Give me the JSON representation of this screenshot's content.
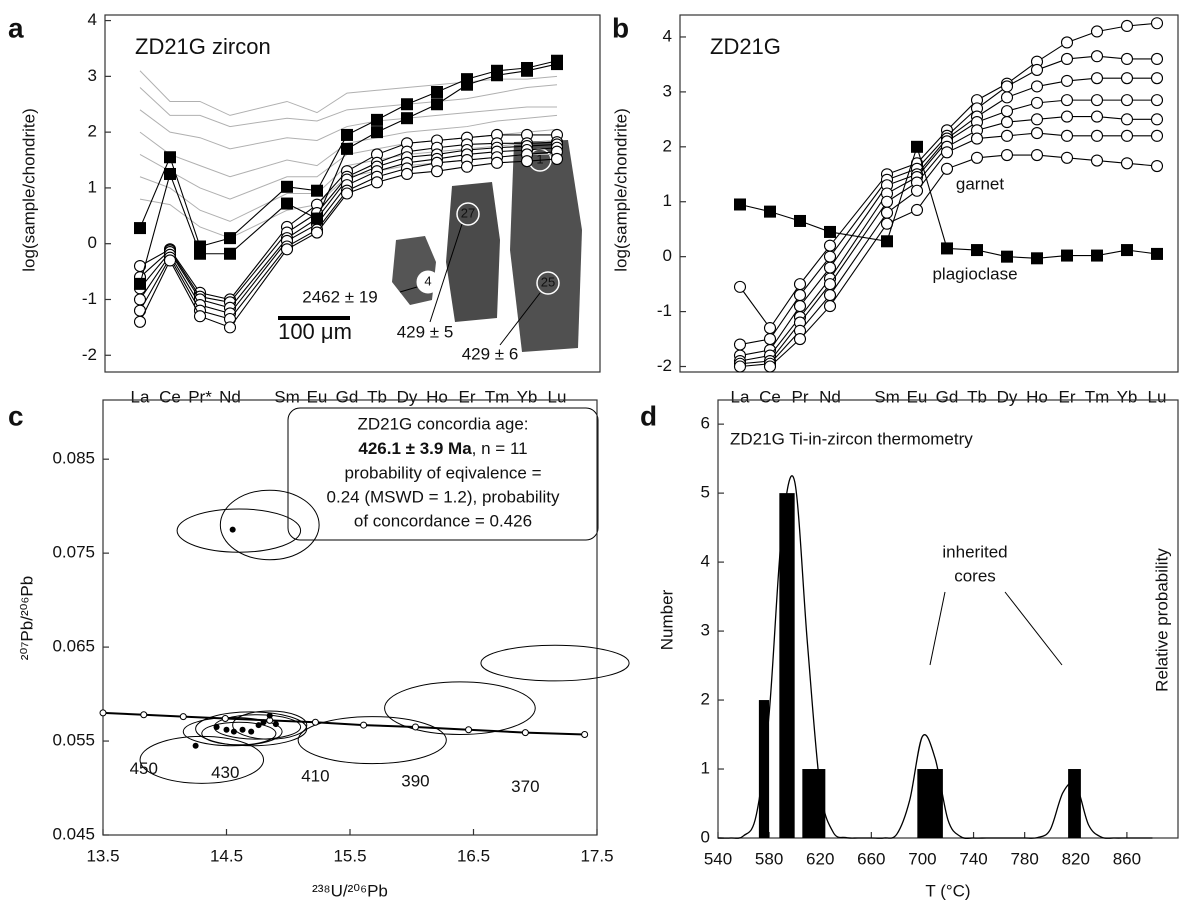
{
  "chart_data": [
    {
      "type": "line",
      "panel_label": "a",
      "title": "ZD21G zircon",
      "ylabel": "log(sample/chondrite)",
      "categories": [
        "La",
        "Ce",
        "Pr*",
        "Nd",
        "Sm",
        "Eu",
        "Gd",
        "Tb",
        "Dy",
        "Ho",
        "Er",
        "Tm",
        "Yb",
        "Lu"
      ],
      "ylim": [
        -2.3,
        4.1
      ],
      "yticks": [
        -2,
        -1,
        0,
        1,
        2,
        3,
        4
      ],
      "annotations": [
        "2462 ± 19",
        "429 ± 5",
        "429 ± 6",
        "100 μm",
        "4",
        "27",
        "1",
        "25"
      ],
      "series": [
        {
          "color": "#b0b0b0",
          "marker": "none",
          "values": [
            3.1,
            2.55,
            2.55,
            2.3,
            2.55,
            2.35,
            2.7,
            2.75,
            2.8,
            2.85,
            2.9,
            2.95,
            2.95,
            3.0
          ]
        },
        {
          "color": "#b0b0b0",
          "marker": "none",
          "values": [
            2.8,
            2.3,
            2.3,
            2.1,
            2.25,
            2.2,
            2.4,
            2.45,
            2.5,
            2.55,
            2.6,
            2.7,
            2.8,
            2.85
          ]
        },
        {
          "color": "#b0b0b0",
          "marker": "none",
          "values": [
            2.4,
            2.0,
            1.9,
            1.7,
            1.9,
            1.85,
            2.1,
            2.2,
            2.25,
            2.3,
            2.35,
            2.4,
            2.45,
            2.45
          ]
        },
        {
          "color": "#b0b0b0",
          "marker": "none",
          "values": [
            2.0,
            1.6,
            1.4,
            1.2,
            1.5,
            1.4,
            1.8,
            1.9,
            2.0,
            2.05,
            2.1,
            2.2,
            2.25,
            2.3
          ]
        },
        {
          "color": "#b0b0b0",
          "marker": "none",
          "values": [
            1.6,
            1.3,
            1.0,
            0.8,
            1.2,
            1.2,
            1.6,
            1.7,
            1.8,
            1.85,
            1.9,
            1.95,
            2.0,
            2.05
          ]
        },
        {
          "color": "#b0b0b0",
          "marker": "none",
          "values": [
            1.2,
            1.0,
            0.6,
            0.4,
            0.9,
            0.9,
            1.4,
            1.5,
            1.6,
            1.65,
            1.7,
            1.75,
            1.8,
            1.85
          ]
        },
        {
          "color": "#b0b0b0",
          "marker": "none",
          "values": [
            0.8,
            0.7,
            0.3,
            0.1,
            0.6,
            0.7,
            1.2,
            1.3,
            1.4,
            1.45,
            1.5,
            1.55,
            1.6,
            1.6
          ]
        },
        {
          "color": "#000000",
          "marker": "circle",
          "values": [
            -0.4,
            -0.1,
            -0.88,
            -1.0,
            0.3,
            0.7,
            1.3,
            1.6,
            1.8,
            1.85,
            1.9,
            1.95,
            1.95,
            1.95
          ]
        },
        {
          "color": "#000000",
          "marker": "circle",
          "values": [
            -0.6,
            -0.12,
            -0.95,
            -1.05,
            0.2,
            0.55,
            1.2,
            1.45,
            1.65,
            1.72,
            1.78,
            1.8,
            1.8,
            1.82
          ]
        },
        {
          "color": "#000000",
          "marker": "circle",
          "values": [
            -0.8,
            -0.15,
            -1.0,
            -1.15,
            0.1,
            0.45,
            1.15,
            1.38,
            1.55,
            1.6,
            1.68,
            1.72,
            1.75,
            1.78
          ]
        },
        {
          "color": "#000000",
          "marker": "circle",
          "values": [
            -1.0,
            -0.2,
            -1.1,
            -1.25,
            0.05,
            0.35,
            1.05,
            1.3,
            1.45,
            1.52,
            1.6,
            1.65,
            1.68,
            1.72
          ]
        },
        {
          "color": "#000000",
          "marker": "circle",
          "values": [
            -1.2,
            -0.25,
            -1.2,
            -1.35,
            -0.05,
            0.25,
            0.95,
            1.2,
            1.35,
            1.45,
            1.5,
            1.55,
            1.6,
            1.65
          ]
        },
        {
          "color": "#000000",
          "marker": "circle",
          "values": [
            -1.4,
            -0.3,
            -1.3,
            -1.5,
            -0.1,
            0.2,
            0.9,
            1.1,
            1.25,
            1.3,
            1.38,
            1.45,
            1.48,
            1.52
          ]
        },
        {
          "color": "#000000",
          "marker": "square",
          "values": [
            0.28,
            1.55,
            -0.05,
            0.1,
            1.02,
            0.95,
            1.95,
            2.22,
            2.5,
            2.72,
            2.95,
            3.1,
            3.15,
            3.28
          ]
        },
        {
          "color": "#000000",
          "marker": "square",
          "values": [
            -0.72,
            1.25,
            -0.18,
            -0.18,
            0.72,
            0.45,
            1.7,
            2.0,
            2.25,
            2.5,
            2.85,
            3.02,
            3.1,
            3.22
          ]
        }
      ]
    },
    {
      "type": "line",
      "panel_label": "b",
      "title": "ZD21G",
      "ylabel": "log(sample/chondrite)",
      "categories": [
        "La",
        "Ce",
        "Pr",
        "Nd",
        "Sm",
        "Eu",
        "Gd",
        "Tb",
        "Dy",
        "Ho",
        "Er",
        "Tm",
        "Yb",
        "Lu"
      ],
      "ylim": [
        -2.1,
        4.4
      ],
      "yticks": [
        -2,
        -1,
        0,
        1,
        2,
        3,
        4
      ],
      "annotations": [
        "garnet",
        "plagioclase"
      ],
      "series": [
        {
          "color": "#000000",
          "marker": "circle",
          "values": [
            -0.55,
            -1.3,
            -0.5,
            0.2,
            1.5,
            1.7,
            2.3,
            2.85,
            3.15,
            3.55,
            3.9,
            4.1,
            4.2,
            4.25
          ]
        },
        {
          "color": "#000000",
          "marker": "circle",
          "values": [
            -1.6,
            -1.5,
            -0.7,
            0.0,
            1.4,
            1.6,
            2.2,
            2.7,
            3.1,
            3.4,
            3.6,
            3.65,
            3.6,
            3.6
          ]
        },
        {
          "color": "#000000",
          "marker": "circle",
          "values": [
            -1.8,
            -1.7,
            -0.9,
            -0.2,
            1.3,
            1.5,
            2.15,
            2.55,
            2.9,
            3.1,
            3.2,
            3.25,
            3.25,
            3.25
          ]
        },
        {
          "color": "#000000",
          "marker": "circle",
          "values": [
            -1.9,
            -1.8,
            -1.1,
            -0.4,
            1.15,
            1.45,
            2.1,
            2.45,
            2.65,
            2.8,
            2.85,
            2.85,
            2.85,
            2.85
          ]
        },
        {
          "color": "#000000",
          "marker": "circle",
          "values": [
            -1.95,
            -1.9,
            -1.2,
            -0.5,
            1.0,
            1.35,
            2.0,
            2.3,
            2.45,
            2.5,
            2.55,
            2.55,
            2.5,
            2.5
          ]
        },
        {
          "color": "#000000",
          "marker": "circle",
          "values": [
            -2.0,
            -1.95,
            -1.35,
            -0.7,
            0.8,
            1.2,
            1.9,
            2.15,
            2.2,
            2.25,
            2.2,
            2.2,
            2.2,
            2.2
          ]
        },
        {
          "color": "#000000",
          "marker": "circle",
          "values": [
            null,
            -2.0,
            -1.5,
            -0.9,
            0.6,
            0.85,
            1.6,
            1.8,
            1.85,
            1.85,
            1.8,
            1.75,
            1.7,
            1.65
          ]
        },
        {
          "color": "#000000",
          "marker": "square",
          "values": [
            0.95,
            0.82,
            0.65,
            0.45,
            0.28,
            2.0,
            0.15,
            0.12,
            0.0,
            -0.03,
            0.02,
            0.02,
            0.12,
            0.05
          ]
        }
      ]
    },
    {
      "type": "scatter",
      "panel_label": "c",
      "xlabel": "²³⁸U/²⁰⁶Pb",
      "ylabel": "²⁰⁷Pb/²⁰⁶Pb",
      "xlim": [
        13.5,
        17.5
      ],
      "xticks": [
        13.5,
        14.5,
        15.5,
        16.5,
        17.5
      ],
      "ylim": [
        0.045,
        0.0913
      ],
      "yticks": [
        0.045,
        0.055,
        0.065,
        0.075,
        0.085
      ],
      "text_box": [
        "ZD21G concordia age:",
        "426.1 ± 3.9 Ma",
        ", n = 11",
        "probability of eqivalence =",
        "0.24 (MSWD = 1.2), probability",
        "of concordance = 0.426"
      ],
      "concordia": {
        "x": [
          13.5,
          13.83,
          14.15,
          14.49,
          14.85,
          15.22,
          15.61,
          16.03,
          16.46,
          16.92,
          17.4
        ],
        "values": [
          0.058,
          0.0578,
          0.0576,
          0.0574,
          0.0572,
          0.057,
          0.0567,
          0.0565,
          0.0562,
          0.0559,
          0.0557
        ],
        "ages": [
          null,
          450,
          null,
          430,
          null,
          410,
          null,
          390,
          null,
          370,
          null
        ]
      },
      "ellipses": {
        "x": [
          14.6,
          14.85,
          14.3,
          14.55,
          14.7,
          14.75,
          14.6,
          14.85,
          15.68,
          16.39,
          17.16
        ],
        "values": [
          0.0774,
          0.078,
          0.053,
          0.056,
          0.0563,
          0.0565,
          0.0558,
          0.0567,
          0.0551,
          0.0585,
          0.0633
        ],
        "x_err": [
          0.5,
          0.4,
          0.5,
          0.4,
          0.45,
          0.35,
          0.3,
          0.3,
          0.6,
          0.61,
          0.6
        ],
        "y_err": [
          0.0023,
          0.0037,
          0.0025,
          0.0015,
          0.0018,
          0.0013,
          0.0012,
          0.0015,
          0.0025,
          0.0028,
          0.0019
        ]
      },
      "series": [
        {
          "color": "#000000",
          "x": [
            14.25,
            14.42,
            14.5,
            14.56,
            14.63,
            14.7,
            14.76,
            14.8,
            14.85,
            14.9,
            14.55
          ],
          "values": [
            0.0545,
            0.0565,
            0.0562,
            0.056,
            0.0562,
            0.056,
            0.0567,
            0.057,
            0.0577,
            0.0568,
            0.0775
          ]
        }
      ]
    },
    {
      "type": "histogram",
      "panel_label": "d",
      "title": "ZD21G Ti-in-zircon thermometry",
      "xlabel": "T (°C)",
      "ylabel": "Number",
      "y2label": "Relative probability",
      "xlim": [
        540,
        900
      ],
      "xticks": [
        540,
        580,
        620,
        660,
        700,
        740,
        780,
        820,
        860
      ],
      "ylim": [
        0,
        6.35
      ],
      "yticks": [
        0,
        1,
        2,
        3,
        4,
        5,
        6
      ],
      "y2lim": [
        0,
        1
      ],
      "annotations": [
        "inherited",
        "cores"
      ],
      "color": "#000000",
      "bins": [
        572,
        580,
        588,
        600,
        606,
        624,
        696,
        716,
        814,
        824
      ],
      "counts": [
        2,
        0,
        5,
        0,
        1,
        0,
        1,
        0,
        1
      ],
      "series": [
        {
          "axis": "y2",
          "color": "#000000",
          "x": [
            540,
            550,
            560,
            570,
            580,
            590,
            600,
            610,
            620,
            630,
            640,
            650,
            660,
            670,
            680,
            690,
            700,
            710,
            720,
            730,
            740,
            750,
            760,
            770,
            780,
            790,
            800,
            810,
            820,
            830,
            840,
            850,
            860,
            870,
            880
          ],
          "values": [
            0,
            0,
            0.005,
            0.053,
            0.283,
            0.7,
            0.814,
            0.444,
            0.114,
            0.014,
            0.001,
            0,
            0,
            0,
            0.009,
            0.086,
            0.232,
            0.181,
            0.041,
            0.003,
            0,
            0,
            0,
            0,
            0,
            0.001,
            0.019,
            0.104,
            0.122,
            0.03,
            0.002,
            0,
            0,
            0,
            0
          ]
        }
      ]
    }
  ]
}
